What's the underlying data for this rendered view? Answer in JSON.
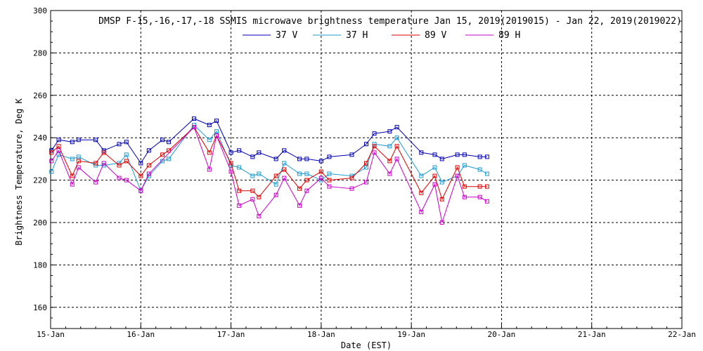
{
  "chart_data": {
    "type": "line",
    "title": "DMSP F-15,-16,-17,-18 SSMIS microwave brightness temperature Jan 15, 2019(2019015) - Jan 22, 2019(2019022)",
    "xlabel": "Date (EST)",
    "ylabel": "Brightness Temperature, Deg K",
    "xlim": [
      0,
      7
    ],
    "ylim": [
      150,
      300
    ],
    "x_ticks": [
      0,
      1,
      2,
      3,
      4,
      5,
      6,
      7
    ],
    "x_tick_labels": [
      "15-Jan",
      "16-Jan",
      "17-Jan",
      "18-Jan",
      "19-Jan",
      "20-Jan",
      "21-Jan",
      "22-Jan"
    ],
    "y_ticks": [
      160,
      180,
      200,
      220,
      240,
      260,
      280,
      300
    ],
    "grid": true,
    "legend_position": "top",
    "series": [
      {
        "name": "37 V",
        "color": "#0000b4",
        "points": [
          [
            0.01,
            234
          ],
          [
            0.09,
            239
          ],
          [
            0.24,
            238
          ],
          [
            0.31,
            239
          ],
          [
            0.5,
            239
          ],
          [
            0.59,
            234
          ],
          [
            0.76,
            237
          ],
          [
            0.84,
            238
          ],
          [
            1.0,
            228
          ],
          [
            1.09,
            234
          ],
          [
            1.24,
            239
          ],
          [
            1.31,
            238
          ],
          [
            1.59,
            249
          ],
          [
            1.76,
            246
          ],
          [
            1.84,
            248
          ],
          [
            2.0,
            233
          ],
          [
            2.09,
            234
          ],
          [
            2.24,
            231
          ],
          [
            2.31,
            233
          ],
          [
            2.5,
            230
          ],
          [
            2.59,
            234
          ],
          [
            2.76,
            230
          ],
          [
            2.84,
            230
          ],
          [
            3.0,
            229
          ],
          [
            3.09,
            231
          ],
          [
            3.34,
            232
          ],
          [
            3.5,
            237
          ],
          [
            3.59,
            242
          ],
          [
            3.76,
            243
          ],
          [
            3.84,
            245
          ],
          [
            4.11,
            233
          ],
          [
            4.26,
            232
          ],
          [
            4.34,
            230
          ],
          [
            4.51,
            232
          ],
          [
            4.59,
            232
          ],
          [
            4.76,
            231
          ],
          [
            4.84,
            231
          ]
        ]
      },
      {
        "name": "37 H",
        "color": "#1e9bd2",
        "points": [
          [
            0.01,
            224
          ],
          [
            0.09,
            232
          ],
          [
            0.24,
            230
          ],
          [
            0.31,
            231
          ],
          [
            0.5,
            227
          ],
          [
            0.59,
            227
          ],
          [
            0.76,
            228
          ],
          [
            0.84,
            232
          ],
          [
            1.0,
            215
          ],
          [
            1.09,
            222
          ],
          [
            1.24,
            229
          ],
          [
            1.31,
            230
          ],
          [
            1.59,
            246
          ],
          [
            1.76,
            239
          ],
          [
            1.84,
            243
          ],
          [
            2.0,
            227
          ],
          [
            2.09,
            226
          ],
          [
            2.24,
            222
          ],
          [
            2.31,
            223
          ],
          [
            2.5,
            218
          ],
          [
            2.59,
            228
          ],
          [
            2.76,
            223
          ],
          [
            2.84,
            223
          ],
          [
            3.0,
            220
          ],
          [
            3.09,
            223
          ],
          [
            3.34,
            222
          ],
          [
            3.5,
            226
          ],
          [
            3.59,
            237
          ],
          [
            3.76,
            236
          ],
          [
            3.84,
            240
          ],
          [
            4.11,
            222
          ],
          [
            4.26,
            226
          ],
          [
            4.34,
            219
          ],
          [
            4.51,
            222
          ],
          [
            4.59,
            227
          ],
          [
            4.76,
            225
          ],
          [
            4.84,
            223
          ]
        ]
      },
      {
        "name": "89 V",
        "color": "#dc0000",
        "points": [
          [
            0.01,
            233
          ],
          [
            0.09,
            236
          ],
          [
            0.24,
            222
          ],
          [
            0.31,
            229
          ],
          [
            0.5,
            228
          ],
          [
            0.59,
            233
          ],
          [
            0.76,
            227
          ],
          [
            0.84,
            229
          ],
          [
            1.0,
            222
          ],
          [
            1.09,
            227
          ],
          [
            1.24,
            232
          ],
          [
            1.31,
            234
          ],
          [
            1.59,
            245
          ],
          [
            1.76,
            233
          ],
          [
            1.84,
            241
          ],
          [
            2.0,
            228
          ],
          [
            2.09,
            215
          ],
          [
            2.24,
            215
          ],
          [
            2.31,
            212
          ],
          [
            2.5,
            222
          ],
          [
            2.59,
            225
          ],
          [
            2.76,
            216
          ],
          [
            2.84,
            220
          ],
          [
            3.0,
            224
          ],
          [
            3.09,
            220
          ],
          [
            3.34,
            221
          ],
          [
            3.5,
            228
          ],
          [
            3.59,
            236
          ],
          [
            3.76,
            229
          ],
          [
            3.84,
            236
          ],
          [
            4.11,
            214
          ],
          [
            4.26,
            222
          ],
          [
            4.34,
            211
          ],
          [
            4.51,
            226
          ],
          [
            4.59,
            217
          ],
          [
            4.76,
            217
          ],
          [
            4.84,
            217
          ]
        ]
      },
      {
        "name": "89 H",
        "color": "#c800c8",
        "points": [
          [
            0.01,
            229
          ],
          [
            0.09,
            234
          ],
          [
            0.24,
            218
          ],
          [
            0.31,
            226
          ],
          [
            0.5,
            219
          ],
          [
            0.59,
            228
          ],
          [
            0.76,
            221
          ],
          [
            0.84,
            220
          ],
          [
            1.0,
            215
          ],
          [
            1.09,
            223
          ],
          [
            1.59,
            245
          ],
          [
            1.76,
            225
          ],
          [
            1.84,
            241
          ],
          [
            2.0,
            224
          ],
          [
            2.09,
            208
          ],
          [
            2.24,
            211
          ],
          [
            2.31,
            203
          ],
          [
            2.5,
            213
          ],
          [
            2.59,
            221
          ],
          [
            2.76,
            208
          ],
          [
            2.84,
            215
          ],
          [
            3.0,
            221
          ],
          [
            3.09,
            217
          ],
          [
            3.34,
            216
          ],
          [
            3.5,
            219
          ],
          [
            3.59,
            233
          ],
          [
            3.76,
            223
          ],
          [
            3.84,
            230
          ],
          [
            4.11,
            205
          ],
          [
            4.26,
            218
          ],
          [
            4.34,
            200
          ],
          [
            4.51,
            222
          ],
          [
            4.59,
            212
          ],
          [
            4.76,
            212
          ],
          [
            4.84,
            210
          ]
        ]
      }
    ]
  }
}
